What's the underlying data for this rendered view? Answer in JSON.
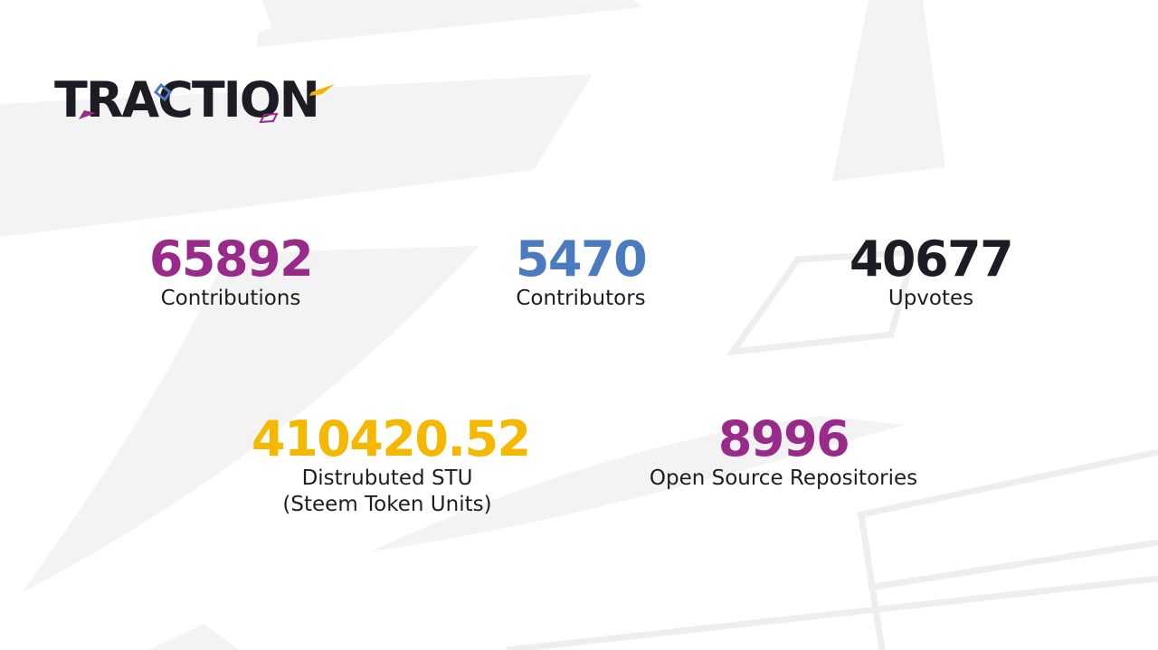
{
  "logo": {
    "text": "TRACTION",
    "text_color": "#1e1b24",
    "accent_colors": [
      "#9a2a8a",
      "#4a7ac0",
      "#f5b400",
      "#9a2a8a"
    ]
  },
  "stats": [
    {
      "value": "65892",
      "label": "Contributions",
      "color": "#9a2a8a"
    },
    {
      "value": "5470",
      "label": "Contributors",
      "color": "#4a7ac0"
    },
    {
      "value": "40677",
      "label": "Upvotes",
      "color": "#1e1b24"
    },
    {
      "value": "410420.52",
      "label": "Distrubuted STU",
      "sublabel": "(Steem Token Units)",
      "color": "#f5b800"
    },
    {
      "value": "8996",
      "label": "Open Source Repositories",
      "color": "#9a2a8a"
    }
  ],
  "label_color": "#1e1b24",
  "background_shape_color": "#f3f3f3"
}
